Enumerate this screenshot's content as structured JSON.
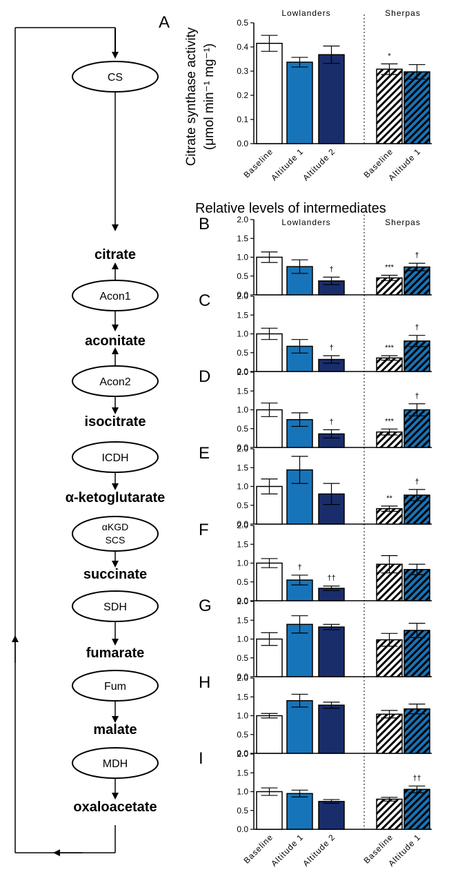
{
  "colors": {
    "lowlander_baseline": "#ffffff",
    "altitude1": "#1874b8",
    "altitude2": "#1a2d6b",
    "sherpa_hatch_light": "#ffffff",
    "stroke": "#000000"
  },
  "pathway": {
    "enzymes": [
      "CS",
      "Acon1",
      "Acon2",
      "ICDH",
      "αKGD",
      "SCS",
      "SDH",
      "Fum",
      "MDH"
    ],
    "metabolites": [
      "citrate",
      "aconitate",
      "isocitrate",
      "α-ketoglutarate",
      "succinate",
      "fumarate",
      "malate",
      "oxaloacetate"
    ]
  },
  "section_title": "Relative levels of intermediates",
  "group_labels": [
    "Lowlanders",
    "Sherpas"
  ],
  "category_labels": [
    "Baseline",
    "Altitude 1",
    "Altitude 2",
    "Baseline",
    "Altitude 1"
  ],
  "chart_data": [
    {
      "panel": "A",
      "type": "bar",
      "ylabel_line1": "Citrate synthase activity",
      "ylabel_line2": "(μmol min⁻¹ mg⁻¹)",
      "ylim": [
        0,
        0.5
      ],
      "ticks": [
        "0.0",
        "0.1",
        "0.2",
        "0.3",
        "0.4",
        "0.5"
      ],
      "values": [
        0.415,
        0.337,
        0.368,
        0.308,
        0.297
      ],
      "errors": [
        0.033,
        0.02,
        0.036,
        0.022,
        0.03
      ],
      "annotations": [
        "",
        "",
        "",
        "*",
        ""
      ],
      "group_labels_shown": true,
      "category_labels_shown": true
    },
    {
      "panel": "B",
      "type": "bar",
      "ylim": [
        0,
        2.0
      ],
      "ticks": [
        "0.0",
        "0.5",
        "1.0",
        "1.5",
        "2.0"
      ],
      "values": [
        1.0,
        0.75,
        0.37,
        0.45,
        0.74
      ],
      "errors": [
        0.14,
        0.18,
        0.1,
        0.07,
        0.1
      ],
      "annotations": [
        "",
        "",
        "†",
        "***",
        "†"
      ],
      "group_labels_shown": true,
      "category_labels_shown": false
    },
    {
      "panel": "C",
      "type": "bar",
      "ylim": [
        0,
        2.0
      ],
      "ticks": [
        "0.0",
        "0.5",
        "1.0",
        "1.5",
        "2.0"
      ],
      "values": [
        1.0,
        0.67,
        0.32,
        0.36,
        0.81
      ],
      "errors": [
        0.15,
        0.18,
        0.1,
        0.06,
        0.15
      ],
      "annotations": [
        "",
        "",
        "†",
        "***",
        "†"
      ],
      "group_labels_shown": false,
      "category_labels_shown": false
    },
    {
      "panel": "D",
      "type": "bar",
      "ylim": [
        0,
        2.0
      ],
      "ticks": [
        "0.0",
        "0.5",
        "1.0",
        "1.5",
        "2.0"
      ],
      "values": [
        1.0,
        0.74,
        0.36,
        0.41,
        1.0
      ],
      "errors": [
        0.18,
        0.18,
        0.11,
        0.08,
        0.16
      ],
      "annotations": [
        "",
        "",
        "†",
        "***",
        "†"
      ],
      "group_labels_shown": false,
      "category_labels_shown": false
    },
    {
      "panel": "E",
      "type": "bar",
      "ylim": [
        0,
        2.0
      ],
      "ticks": [
        "0.0",
        "0.5",
        "1.0",
        "1.5",
        "2.0"
      ],
      "values": [
        1.0,
        1.44,
        0.8,
        0.41,
        0.77
      ],
      "errors": [
        0.2,
        0.36,
        0.28,
        0.07,
        0.15
      ],
      "annotations": [
        "",
        "",
        "",
        "**",
        "†"
      ],
      "group_labels_shown": false,
      "category_labels_shown": false
    },
    {
      "panel": "F",
      "type": "bar",
      "ylim": [
        0,
        2.0
      ],
      "ticks": [
        "0.0",
        "0.5",
        "1.0",
        "1.5",
        "2.0"
      ],
      "values": [
        1.0,
        0.55,
        0.33,
        0.97,
        0.83
      ],
      "errors": [
        0.12,
        0.13,
        0.06,
        0.23,
        0.14
      ],
      "annotations": [
        "",
        "†",
        "††",
        "",
        ""
      ],
      "group_labels_shown": false,
      "category_labels_shown": false
    },
    {
      "panel": "G",
      "type": "bar",
      "ylim": [
        0,
        2.0
      ],
      "ticks": [
        "0.0",
        "0.5",
        "1.0",
        "1.5",
        "2.0"
      ],
      "values": [
        1.0,
        1.39,
        1.32,
        0.98,
        1.23
      ],
      "errors": [
        0.17,
        0.23,
        0.07,
        0.17,
        0.19
      ],
      "annotations": [
        "",
        "",
        "",
        "",
        ""
      ],
      "group_labels_shown": false,
      "category_labels_shown": false
    },
    {
      "panel": "H",
      "type": "bar",
      "ylim": [
        0,
        2.0
      ],
      "ticks": [
        "0.0",
        "0.5",
        "1.0",
        "1.5",
        "2.0"
      ],
      "values": [
        1.0,
        1.4,
        1.28,
        1.04,
        1.18
      ],
      "errors": [
        0.06,
        0.17,
        0.08,
        0.1,
        0.13
      ],
      "annotations": [
        "",
        "",
        "",
        "",
        ""
      ],
      "group_labels_shown": false,
      "category_labels_shown": false
    },
    {
      "panel": "I",
      "type": "bar",
      "ylim": [
        0,
        2.0
      ],
      "ticks": [
        "0.0",
        "0.5",
        "1.0",
        "1.5",
        "2.0"
      ],
      "values": [
        1.0,
        0.95,
        0.74,
        0.8,
        1.06
      ],
      "errors": [
        0.1,
        0.09,
        0.05,
        0.05,
        0.09
      ],
      "annotations": [
        "",
        "",
        "",
        "",
        "††"
      ],
      "group_labels_shown": false,
      "category_labels_shown": true
    }
  ]
}
